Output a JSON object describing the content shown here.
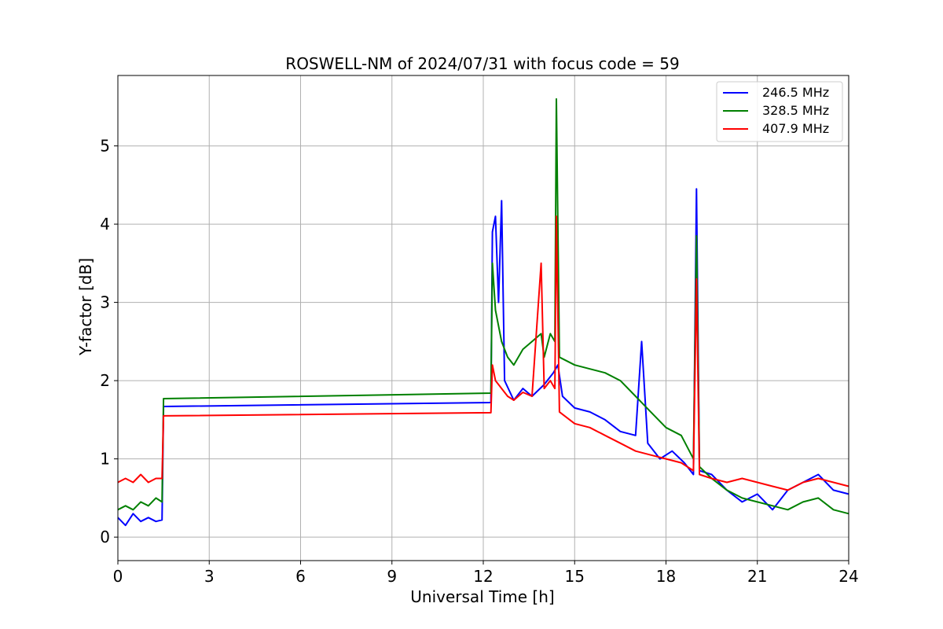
{
  "chart_data": {
    "type": "line",
    "title": "ROSWELL-NM of 2024/07/31 with focus code = 59",
    "xlabel": "Universal Time [h]",
    "ylabel": "Y-factor [dB]",
    "xlim": [
      0,
      24
    ],
    "ylim": [
      -0.3,
      5.9
    ],
    "xticks": [
      0,
      3,
      6,
      9,
      12,
      15,
      18,
      21,
      24
    ],
    "yticks": [
      0,
      1,
      2,
      3,
      4,
      5
    ],
    "grid": true,
    "legend_position": "top-right",
    "series": [
      {
        "name": "246.5 MHz",
        "color": "#0000ff",
        "points": [
          [
            0.0,
            0.25
          ],
          [
            0.25,
            0.15
          ],
          [
            0.5,
            0.3
          ],
          [
            0.75,
            0.2
          ],
          [
            1.0,
            0.25
          ],
          [
            1.25,
            0.2
          ],
          [
            1.45,
            0.22
          ],
          [
            1.5,
            1.67
          ],
          [
            12.25,
            1.72
          ],
          [
            12.3,
            3.9
          ],
          [
            12.4,
            4.1
          ],
          [
            12.5,
            3.0
          ],
          [
            12.6,
            4.3
          ],
          [
            12.7,
            2.0
          ],
          [
            13.0,
            1.75
          ],
          [
            13.3,
            1.9
          ],
          [
            13.6,
            1.8
          ],
          [
            14.0,
            1.95
          ],
          [
            14.3,
            2.1
          ],
          [
            14.45,
            2.2
          ],
          [
            14.6,
            1.8
          ],
          [
            15.0,
            1.65
          ],
          [
            15.5,
            1.6
          ],
          [
            16.0,
            1.5
          ],
          [
            16.5,
            1.35
          ],
          [
            17.0,
            1.3
          ],
          [
            17.2,
            2.5
          ],
          [
            17.4,
            1.2
          ],
          [
            17.8,
            1.0
          ],
          [
            18.2,
            1.1
          ],
          [
            18.6,
            0.95
          ],
          [
            18.9,
            0.8
          ],
          [
            19.0,
            4.45
          ],
          [
            19.1,
            0.85
          ],
          [
            19.5,
            0.8
          ],
          [
            20.0,
            0.6
          ],
          [
            20.5,
            0.45
          ],
          [
            21.0,
            0.55
          ],
          [
            21.5,
            0.35
          ],
          [
            22.0,
            0.6
          ],
          [
            22.5,
            0.7
          ],
          [
            23.0,
            0.8
          ],
          [
            23.5,
            0.6
          ],
          [
            24.0,
            0.55
          ]
        ]
      },
      {
        "name": "328.5 MHz",
        "color": "#008000",
        "points": [
          [
            0.0,
            0.35
          ],
          [
            0.25,
            0.4
          ],
          [
            0.5,
            0.35
          ],
          [
            0.75,
            0.45
          ],
          [
            1.0,
            0.4
          ],
          [
            1.25,
            0.5
          ],
          [
            1.45,
            0.45
          ],
          [
            1.5,
            1.77
          ],
          [
            12.25,
            1.84
          ],
          [
            12.3,
            3.5
          ],
          [
            12.4,
            2.9
          ],
          [
            12.5,
            2.7
          ],
          [
            12.6,
            2.5
          ],
          [
            12.8,
            2.3
          ],
          [
            13.0,
            2.2
          ],
          [
            13.3,
            2.4
          ],
          [
            13.6,
            2.5
          ],
          [
            13.9,
            2.6
          ],
          [
            14.0,
            2.3
          ],
          [
            14.2,
            2.6
          ],
          [
            14.35,
            2.5
          ],
          [
            14.4,
            5.6
          ],
          [
            14.5,
            2.3
          ],
          [
            15.0,
            2.2
          ],
          [
            15.5,
            2.15
          ],
          [
            16.0,
            2.1
          ],
          [
            16.5,
            2.0
          ],
          [
            17.0,
            1.8
          ],
          [
            17.5,
            1.6
          ],
          [
            18.0,
            1.4
          ],
          [
            18.5,
            1.3
          ],
          [
            18.9,
            1.0
          ],
          [
            19.0,
            3.85
          ],
          [
            19.1,
            0.9
          ],
          [
            19.5,
            0.75
          ],
          [
            20.0,
            0.6
          ],
          [
            20.5,
            0.5
          ],
          [
            21.0,
            0.45
          ],
          [
            21.5,
            0.4
          ],
          [
            22.0,
            0.35
          ],
          [
            22.5,
            0.45
          ],
          [
            23.0,
            0.5
          ],
          [
            23.5,
            0.35
          ],
          [
            24.0,
            0.3
          ]
        ]
      },
      {
        "name": "407.9 MHz",
        "color": "#ff0000",
        "points": [
          [
            0.0,
            0.7
          ],
          [
            0.25,
            0.75
          ],
          [
            0.5,
            0.7
          ],
          [
            0.75,
            0.8
          ],
          [
            1.0,
            0.7
          ],
          [
            1.25,
            0.75
          ],
          [
            1.45,
            0.75
          ],
          [
            1.5,
            1.55
          ],
          [
            12.25,
            1.59
          ],
          [
            12.3,
            2.2
          ],
          [
            12.4,
            2.0
          ],
          [
            12.6,
            1.9
          ],
          [
            12.8,
            1.8
          ],
          [
            13.0,
            1.75
          ],
          [
            13.3,
            1.85
          ],
          [
            13.6,
            1.8
          ],
          [
            13.9,
            3.5
          ],
          [
            14.0,
            1.9
          ],
          [
            14.2,
            2.0
          ],
          [
            14.35,
            1.9
          ],
          [
            14.4,
            4.1
          ],
          [
            14.5,
            1.6
          ],
          [
            15.0,
            1.45
          ],
          [
            15.5,
            1.4
          ],
          [
            16.0,
            1.3
          ],
          [
            16.5,
            1.2
          ],
          [
            17.0,
            1.1
          ],
          [
            17.5,
            1.05
          ],
          [
            18.0,
            1.0
          ],
          [
            18.5,
            0.95
          ],
          [
            18.9,
            0.85
          ],
          [
            19.0,
            3.3
          ],
          [
            19.1,
            0.8
          ],
          [
            19.5,
            0.75
          ],
          [
            20.0,
            0.7
          ],
          [
            20.5,
            0.75
          ],
          [
            21.0,
            0.7
          ],
          [
            21.5,
            0.65
          ],
          [
            22.0,
            0.6
          ],
          [
            22.5,
            0.7
          ],
          [
            23.0,
            0.75
          ],
          [
            23.5,
            0.7
          ],
          [
            24.0,
            0.65
          ]
        ]
      }
    ]
  }
}
